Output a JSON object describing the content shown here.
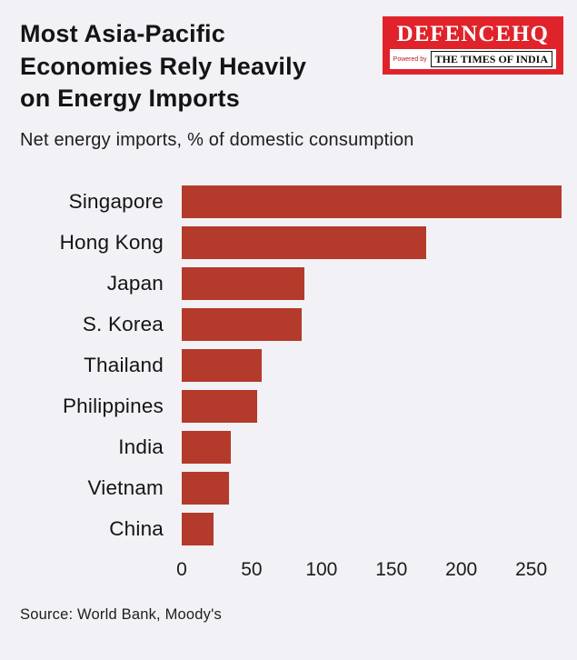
{
  "header": {
    "title": "Most Asia-Pacific\nEconomies Rely Heavily\non Energy Imports",
    "subtitle": "Net energy imports, % of domestic consumption"
  },
  "logo": {
    "brand": "DEFENCEHQ",
    "powered_by": "Powered by",
    "times_of_india": "THE TIMES OF INDIA",
    "background_color": "#e0232a"
  },
  "footer": {
    "source": "Source: World Bank, Moody's"
  },
  "chart_data": {
    "type": "bar",
    "orientation": "horizontal",
    "title": "Most Asia-Pacific Economies Rely Heavily on Energy Imports",
    "subtitle": "Net energy imports, % of domestic consumption",
    "categories": [
      "Singapore",
      "Hong Kong",
      "Japan",
      "S. Korea",
      "Thailand",
      "Philippines",
      "India",
      "Vietnam",
      "China"
    ],
    "values": [
      272,
      175,
      88,
      86,
      57,
      54,
      35,
      34,
      23
    ],
    "xlabel": "",
    "ylabel": "",
    "xlim": [
      0,
      273
    ],
    "xticks": [
      0,
      50,
      100,
      150,
      200,
      250
    ],
    "grid": false,
    "legend": false,
    "bar_color": "#b43a2b",
    "source": "Source: World Bank, Moody's"
  }
}
